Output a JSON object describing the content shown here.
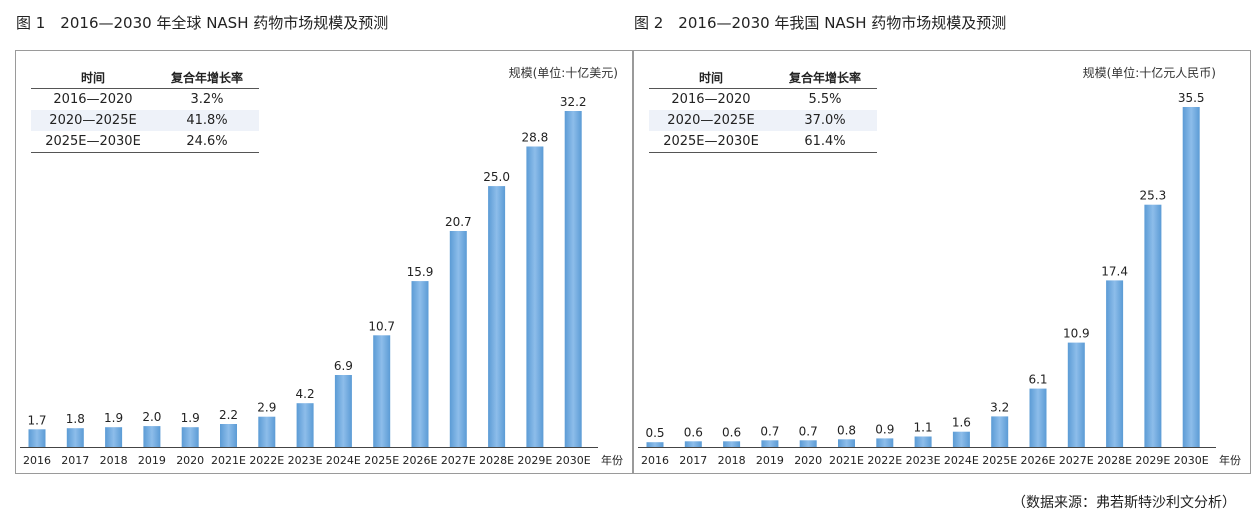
{
  "source": "（数据来源：弗若斯特沙利文分析）",
  "chart_data": [
    {
      "type": "bar",
      "title": "图 1　2016—2030 年全球 NASH 药物市场规模及预测",
      "unit_label": "规模(单位:十亿美元)",
      "xlabel": "年份",
      "ylabel": "规模(单位:十亿美元)",
      "categories": [
        "2016",
        "2017",
        "2018",
        "2019",
        "2020",
        "2021E",
        "2022E",
        "2023E",
        "2024E",
        "2025E",
        "2026E",
        "2027E",
        "2028E",
        "2029E",
        "2030E"
      ],
      "values": [
        1.7,
        1.8,
        1.9,
        2.0,
        1.9,
        2.2,
        2.9,
        4.2,
        6.9,
        10.7,
        15.9,
        20.7,
        25.0,
        28.8,
        32.2
      ],
      "value_labels": [
        "1.7",
        "1.8",
        "1.9",
        "2.0",
        "1.9",
        "2.2",
        "2.9",
        "4.2",
        "6.9",
        "10.7",
        "15.9",
        "20.7",
        "25.0",
        "28.8",
        "32.2"
      ],
      "ylim": [
        0,
        32.2
      ],
      "bar_color": "#6fa8dc",
      "table": {
        "headers": [
          "时间",
          "复合年增长率"
        ],
        "rows": [
          [
            "2016—2020",
            "3.2%"
          ],
          [
            "2020—2025E",
            "41.8%"
          ],
          [
            "2025E—2030E",
            "24.6%"
          ]
        ]
      }
    },
    {
      "type": "bar",
      "title": "图 2　2016—2030 年我国 NASH 药物市场规模及预测",
      "unit_label": "规模(单位:十亿元人民币)",
      "xlabel": "年份",
      "ylabel": "规模(单位:十亿元人民币)",
      "categories": [
        "2016",
        "2017",
        "2018",
        "2019",
        "2020",
        "2021E",
        "2022E",
        "2023E",
        "2024E",
        "2025E",
        "2026E",
        "2027E",
        "2028E",
        "2029E",
        "2030E"
      ],
      "values": [
        0.5,
        0.6,
        0.6,
        0.7,
        0.7,
        0.8,
        0.9,
        1.1,
        1.6,
        3.2,
        6.1,
        10.9,
        17.4,
        25.3,
        35.5
      ],
      "value_labels": [
        "0.5",
        "0.6",
        "0.6",
        "0.7",
        "0.7",
        "0.8",
        "0.9",
        "1.1",
        "1.6",
        "3.2",
        "6.1",
        "10.9",
        "17.4",
        "25.3",
        "35.5"
      ],
      "ylim": [
        0,
        35.5
      ],
      "bar_color": "#6fa8dc",
      "table": {
        "headers": [
          "时间",
          "复合年增长率"
        ],
        "rows": [
          [
            "2016—2020",
            "5.5%"
          ],
          [
            "2020—2025E",
            "37.0%"
          ],
          [
            "2025E—2030E",
            "61.4%"
          ]
        ]
      }
    }
  ]
}
